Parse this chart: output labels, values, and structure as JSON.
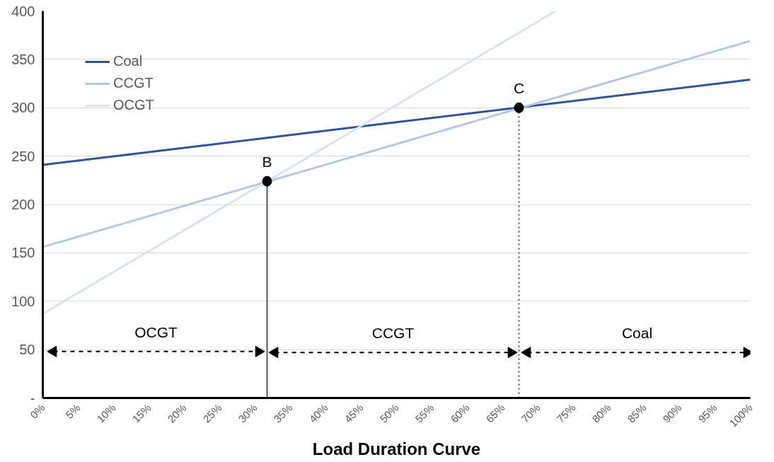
{
  "chart_data": {
    "type": "line",
    "xlabel": "Load Duration Curve",
    "series": [
      {
        "name": "Coal",
        "color": "#2f5597",
        "x": [
          0,
          100
        ],
        "values": [
          241,
          329
        ]
      },
      {
        "name": "CCGT",
        "color": "#b4c7e7",
        "x": [
          0,
          100
        ],
        "values": [
          156,
          369
        ]
      },
      {
        "name": "OCGT",
        "color": "#dae3f3",
        "x": [
          0,
          72.5
        ],
        "values": [
          87,
          400
        ]
      },
      {
        "type": "line",
        "color": "#000000",
        "x": [
          31.7,
          31.7
        ],
        "values": [
          0,
          224
        ],
        "line_style": "solid"
      },
      {
        "type": "line",
        "color": "#808080",
        "x": [
          67.3,
          67.3
        ],
        "values": [
          0,
          300
        ],
        "line_style": "dotted"
      },
      {
        "type": "scatter",
        "color": "#000000",
        "marker": "circle",
        "x": [
          31.7,
          67.3
        ],
        "values": [
          224,
          300
        ]
      },
      {
        "type": "line",
        "color": "#000000",
        "x": [
          1.5,
          30.5
        ],
        "values": [
          48,
          48
        ],
        "line_style": "dashed",
        "marker": "triangle"
      },
      {
        "type": "line",
        "color": "#000000",
        "x": [
          32.8,
          66.2
        ],
        "values": [
          47,
          47
        ],
        "line_style": "dashed",
        "marker": "triangle"
      },
      {
        "type": "line",
        "color": "#000000",
        "x": [
          68.5,
          99.5
        ],
        "values": [
          47,
          47
        ],
        "line_style": "dashed",
        "marker": "triangle"
      }
    ],
    "annotations": [
      {
        "text": "B",
        "x": 31.7,
        "y": 224
      },
      {
        "text": "C",
        "x": 67.3,
        "y": 300
      },
      {
        "text": "OCGT",
        "x": 16,
        "y": 48
      },
      {
        "text": "CCGT",
        "x": 49.5,
        "y": 47
      },
      {
        "text": "Coal",
        "x": 84,
        "y": 47
      }
    ],
    "xlim": [
      0,
      100
    ],
    "ylim": [
      0,
      400
    ],
    "xticks": [
      {
        "value": 0,
        "label": "0%"
      },
      {
        "value": 5,
        "label": "5%"
      },
      {
        "value": 10,
        "label": "10%"
      },
      {
        "value": 15,
        "label": "15%"
      },
      {
        "value": 20,
        "label": "20%"
      },
      {
        "value": 25,
        "label": "25%"
      },
      {
        "value": 30,
        "label": "30%"
      },
      {
        "value": 35,
        "label": "35%"
      },
      {
        "value": 40,
        "label": "40%"
      },
      {
        "value": 45,
        "label": "45%"
      },
      {
        "value": 50,
        "label": "50%"
      },
      {
        "value": 55,
        "label": "55%"
      },
      {
        "value": 60,
        "label": "60%"
      },
      {
        "value": 65,
        "label": "65%"
      },
      {
        "value": 70,
        "label": "70%"
      },
      {
        "value": 75,
        "label": "75%"
      },
      {
        "value": 80,
        "label": "80%"
      },
      {
        "value": 85,
        "label": "85%"
      },
      {
        "value": 90,
        "label": "90%"
      },
      {
        "value": 95,
        "label": "95%"
      },
      {
        "value": 100,
        "label": "100%"
      }
    ],
    "yticks": [
      {
        "value": 0,
        "label": "-"
      },
      50,
      100,
      150,
      200,
      250,
      300,
      350,
      400
    ],
    "grid": "y",
    "legend": "top left",
    "line_style": "solid",
    "marker": "none"
  }
}
